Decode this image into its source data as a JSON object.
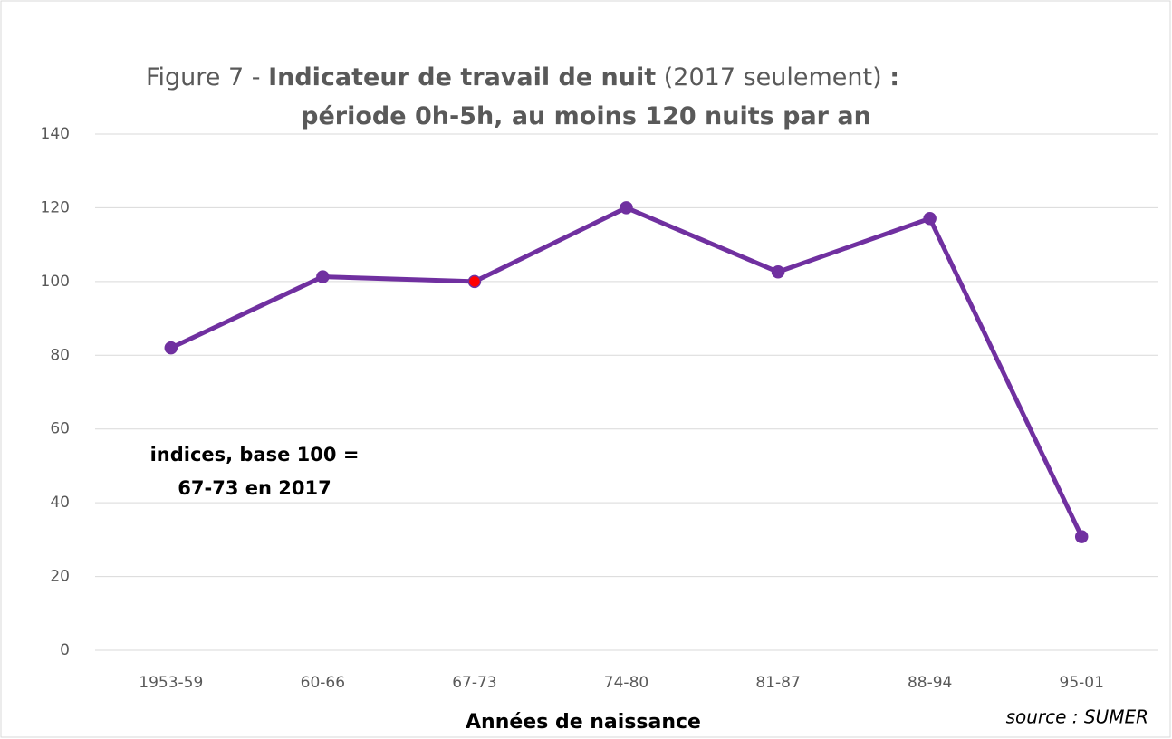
{
  "chart_data": {
    "type": "line",
    "title_lines": [
      [
        {
          "text": "Figure 7 - ",
          "bold": false
        },
        {
          "text": "Indicateur de travail de nuit",
          "bold": true
        },
        {
          "text": " (2017 seulement) ",
          "bold": false
        },
        {
          "text": ":",
          "bold": true
        }
      ],
      [
        {
          "text": "période 0h-5h, au moins 120 nuits par an",
          "bold": true
        }
      ]
    ],
    "x_label": "Années de naissance",
    "annotation": [
      "indices, base 100 =",
      "67-73 en 2017"
    ],
    "source": "source : SUMER",
    "categories": [
      "1953-59",
      "60-66",
      "67-73",
      "74-80",
      "81-87",
      "88-94",
      "95-01"
    ],
    "series": [
      {
        "color": "#7030a0",
        "values": [
          82,
          101.3,
          100,
          120,
          102.6,
          117.1,
          30.8
        ],
        "marker_colors": [
          "#7030a0",
          "#7030a0",
          "#ff0000",
          "#7030a0",
          "#7030a0",
          "#7030a0",
          "#7030a0"
        ]
      }
    ],
    "ylim": [
      0,
      140
    ],
    "yticks": [
      0,
      20,
      40,
      60,
      80,
      100,
      120,
      140
    ],
    "grid": true
  }
}
